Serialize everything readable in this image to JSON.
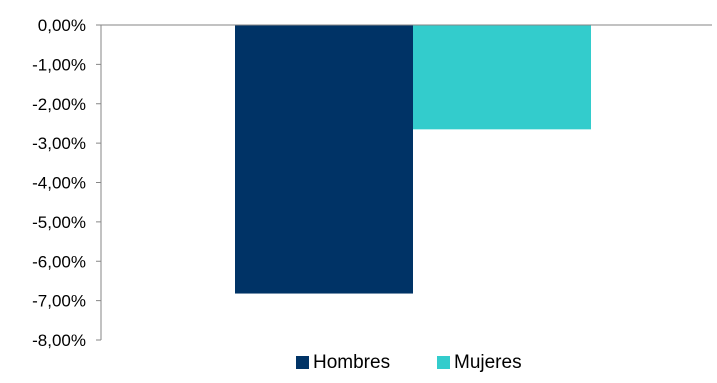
{
  "chart_data": {
    "type": "bar",
    "categories": [
      ""
    ],
    "series": [
      {
        "name": "Hombres",
        "values": [
          -6.82
        ],
        "color": "#003366"
      },
      {
        "name": "Mujeres",
        "values": [
          -2.65
        ],
        "color": "#33CCCC"
      }
    ],
    "ylim": [
      -8,
      0
    ],
    "yticks": [
      {
        "value": 0,
        "label": "0,00%"
      },
      {
        "value": -1,
        "label": "-1,00%"
      },
      {
        "value": -2,
        "label": "-2,00%"
      },
      {
        "value": -3,
        "label": "-3,00%"
      },
      {
        "value": -4,
        "label": "-4,00%"
      },
      {
        "value": -5,
        "label": "-5,00%"
      },
      {
        "value": -6,
        "label": "-6,00%"
      },
      {
        "value": -7,
        "label": "-7,00%"
      },
      {
        "value": -8,
        "label": "-8,00%"
      }
    ],
    "grid": false,
    "legend_position": "bottom"
  }
}
